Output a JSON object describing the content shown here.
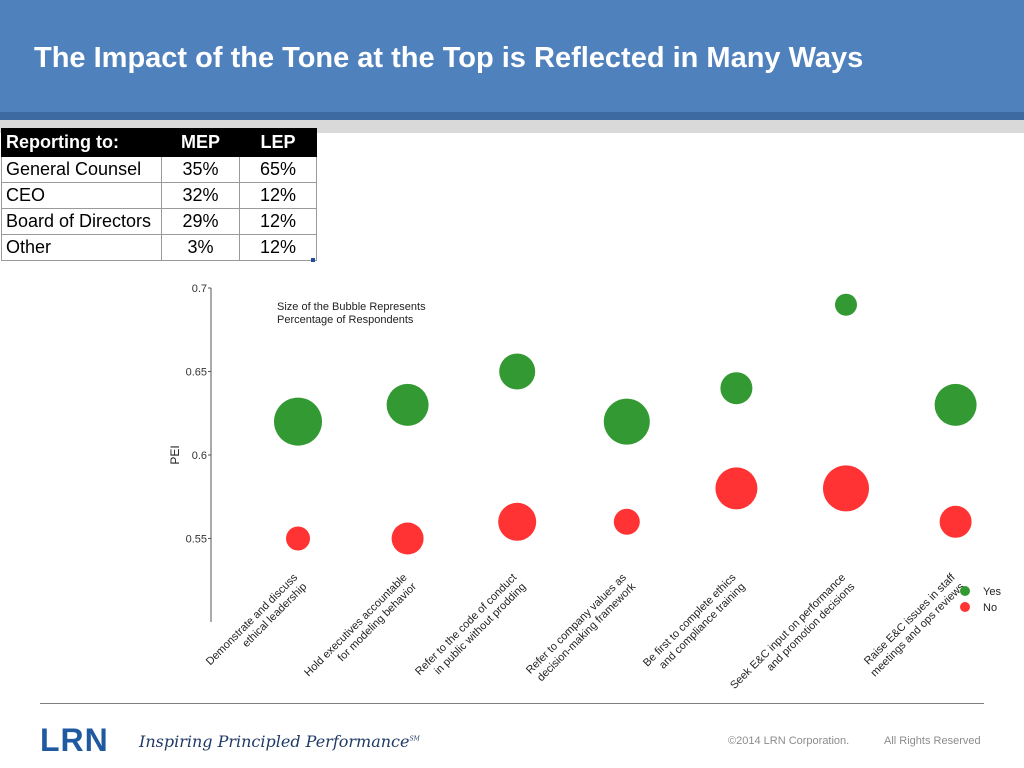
{
  "slide": {
    "title": "The Impact of the Tone at the Top is Reflected in Many Ways"
  },
  "table": {
    "headers": [
      "Reporting to:",
      "MEP",
      "LEP"
    ],
    "rows": [
      [
        "General Counsel",
        "35%",
        "65%"
      ],
      [
        "CEO",
        "32%",
        "12%"
      ],
      [
        "Board of Directors",
        "29%",
        "12%"
      ],
      [
        "Other",
        "3%",
        "12%"
      ]
    ]
  },
  "chart_data": {
    "type": "bubble",
    "ylabel": "PEI",
    "xlabel": "",
    "ylim": [
      0.5,
      0.7
    ],
    "yticks": [
      "0.7",
      "0.65",
      "0.6",
      "0.55"
    ],
    "ytick_values": [
      0.7,
      0.65,
      0.6,
      0.55
    ],
    "annotation": [
      "Size of the Bubble Represents",
      "Percentage of Respondents"
    ],
    "categories": [
      [
        "Demonstrate and discuss",
        "ethical leadership"
      ],
      [
        "Hold executives accountable",
        "for modeling  behavior"
      ],
      [
        "Refer to the code of conduct",
        "in public without prodding"
      ],
      [
        "Refer to company values as",
        "decision-making framework"
      ],
      [
        "Be first to complete ethics",
        "and compliance training"
      ],
      [
        "Seek E&C input on performance",
        "and promotion decisions"
      ],
      [
        "Raise E&C issues in staff",
        "meetings and ops reviews"
      ]
    ],
    "series": [
      {
        "name": "Yes",
        "color": "#339933",
        "y": [
          0.62,
          0.63,
          0.65,
          0.62,
          0.64,
          0.69,
          0.63
        ],
        "size": [
          24,
          21,
          18,
          23,
          16,
          11,
          21
        ]
      },
      {
        "name": "No",
        "color": "#ff3333",
        "y": [
          0.55,
          0.55,
          0.56,
          0.56,
          0.58,
          0.58,
          0.56
        ],
        "size": [
          12,
          16,
          19,
          13,
          21,
          23,
          16
        ]
      }
    ],
    "legend_position": "bottom-right",
    "grid": false
  },
  "footer": {
    "logo": "LRN",
    "tagline": "Inspiring Principled Performance",
    "tagline_mark": "SM",
    "copyright": "©2014 LRN Corporation.",
    "rights": "All Rights Reserved"
  }
}
